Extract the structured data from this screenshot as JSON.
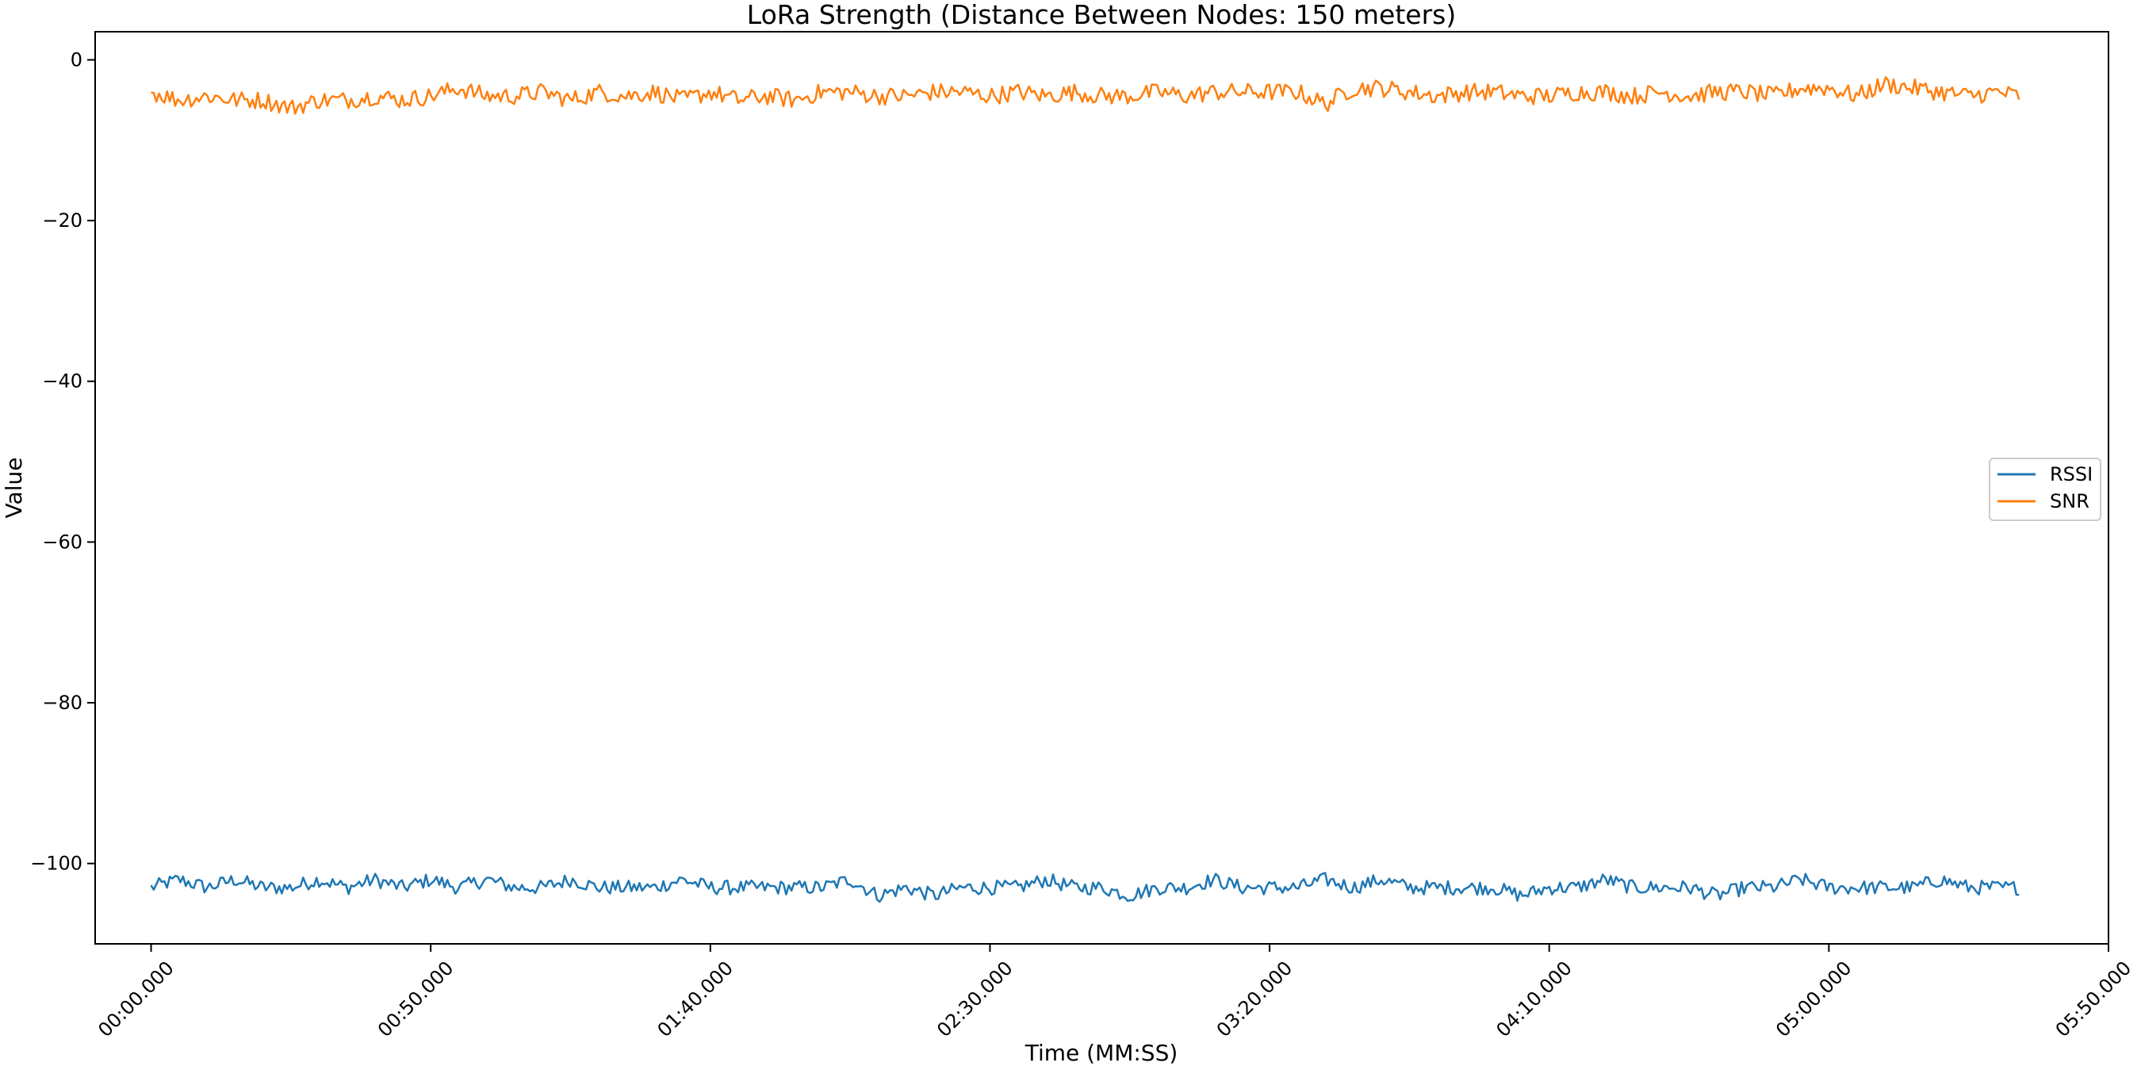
{
  "chart_data": {
    "type": "line",
    "title": "LoRa Strength (Distance Between Nodes: 150 meters)",
    "xlabel": "Time (MM:SS)",
    "ylabel": "Value",
    "xlim": [
      -10,
      350
    ],
    "ylim": [
      -110,
      3.5
    ],
    "x_ticks": [
      0,
      50,
      100,
      150,
      200,
      250,
      300,
      350
    ],
    "x_tick_labels": [
      "00:00.000",
      "00:50.000",
      "01:40.000",
      "02:30.000",
      "03:20.000",
      "04:10.000",
      "05:00.000",
      "05:50.000"
    ],
    "y_ticks": [
      0,
      -20,
      -40,
      -60,
      -80,
      -100
    ],
    "y_tick_labels": [
      "0",
      "−20",
      "−40",
      "−60",
      "−80",
      "−100"
    ],
    "grid": false,
    "legend_position": "center-right",
    "x_range": [
      0,
      334
    ],
    "series": [
      {
        "name": "RSSI",
        "color": "#1f77b4",
        "x": [
          0,
          5,
          10,
          15,
          20,
          25,
          30,
          35,
          40,
          45,
          50,
          55,
          60,
          65,
          70,
          75,
          80,
          85,
          90,
          95,
          100,
          105,
          110,
          115,
          120,
          125,
          130,
          135,
          140,
          145,
          150,
          155,
          160,
          165,
          170,
          175,
          180,
          185,
          190,
          195,
          200,
          205,
          210,
          215,
          220,
          225,
          230,
          235,
          240,
          245,
          250,
          255,
          260,
          265,
          270,
          275,
          280,
          285,
          290,
          295,
          300,
          305,
          310,
          315,
          320,
          325,
          330,
          334
        ],
        "y": [
          -103,
          -102,
          -103,
          -102,
          -103,
          -103,
          -102,
          -103,
          -102,
          -103,
          -102,
          -103,
          -102,
          -103,
          -103,
          -102,
          -103,
          -103,
          -103,
          -102,
          -103,
          -103,
          -103,
          -103,
          -103,
          -102,
          -104,
          -103,
          -104,
          -103,
          -103,
          -103,
          -102,
          -103,
          -103,
          -104,
          -103,
          -103,
          -102,
          -103,
          -103,
          -103,
          -102,
          -103,
          -102,
          -103,
          -103,
          -103,
          -103,
          -104,
          -103,
          -103,
          -102,
          -103,
          -103,
          -103,
          -104,
          -103,
          -103,
          -102,
          -103,
          -103,
          -103,
          -103,
          -102,
          -103,
          -103,
          -103
        ]
      },
      {
        "name": "SNR",
        "color": "#ff7f0e",
        "x": [
          0,
          5,
          10,
          15,
          20,
          25,
          30,
          35,
          40,
          45,
          50,
          55,
          60,
          65,
          70,
          75,
          80,
          85,
          90,
          95,
          100,
          105,
          110,
          115,
          120,
          125,
          130,
          135,
          140,
          145,
          150,
          155,
          160,
          165,
          170,
          175,
          180,
          185,
          190,
          195,
          200,
          205,
          210,
          215,
          220,
          225,
          230,
          235,
          240,
          245,
          250,
          255,
          260,
          265,
          270,
          275,
          280,
          285,
          290,
          295,
          300,
          305,
          310,
          315,
          320,
          325,
          330,
          334
        ],
        "y": [
          -4,
          -5,
          -4.5,
          -5,
          -5,
          -6,
          -5,
          -5,
          -4.5,
          -5,
          -4.5,
          -3.5,
          -4.5,
          -4.5,
          -4,
          -5,
          -4,
          -4.5,
          -4,
          -5,
          -4,
          -5,
          -4.5,
          -5,
          -4,
          -4,
          -4.5,
          -4.5,
          -4,
          -4,
          -4.5,
          -4,
          -4.5,
          -4,
          -4.5,
          -4.5,
          -4,
          -4.5,
          -4,
          -4,
          -4,
          -4,
          -5.5,
          -3.5,
          -3.5,
          -4,
          -4.5,
          -4,
          -4,
          -4.5,
          -4.5,
          -4,
          -4,
          -4.5,
          -4,
          -4.5,
          -4,
          -4,
          -4.5,
          -3.5,
          -3.5,
          -4.5,
          -3,
          -3.5,
          -4,
          -4.5,
          -4,
          -4.5
        ]
      }
    ]
  }
}
